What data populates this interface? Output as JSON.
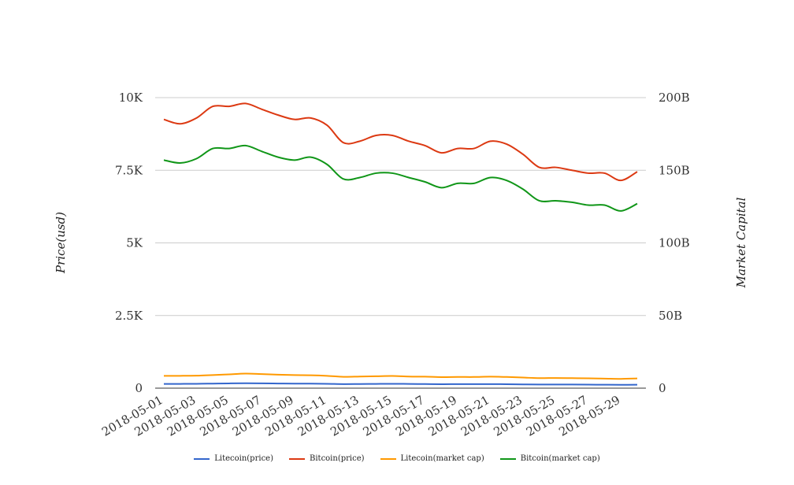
{
  "chart_data": {
    "type": "line",
    "x": [
      "2018-05-01",
      "2018-05-02",
      "2018-05-03",
      "2018-05-04",
      "2018-05-05",
      "2018-05-06",
      "2018-05-07",
      "2018-05-08",
      "2018-05-09",
      "2018-05-10",
      "2018-05-11",
      "2018-05-12",
      "2018-05-13",
      "2018-05-14",
      "2018-05-15",
      "2018-05-16",
      "2018-05-17",
      "2018-05-18",
      "2018-05-19",
      "2018-05-20",
      "2018-05-21",
      "2018-05-22",
      "2018-05-23",
      "2018-05-24",
      "2018-05-25",
      "2018-05-26",
      "2018-05-27",
      "2018-05-28",
      "2018-05-29",
      "2018-05-30"
    ],
    "x_tick_labels": [
      "2018-05-01",
      "2018-05-03",
      "2018-05-05",
      "2018-05-07",
      "2018-05-09",
      "2018-05-11",
      "2018-05-13",
      "2018-05-15",
      "2018-05-17",
      "2018-05-19",
      "2018-05-21",
      "2018-05-23",
      "2018-05-25",
      "2018-05-27",
      "2018-05-29"
    ],
    "ylabel": "Price(usd)",
    "y2label": "Market Capital",
    "ylim": [
      0,
      10000
    ],
    "y2lim": [
      0,
      200000000000
    ],
    "y_ticks": [
      "0",
      "2.5K",
      "5K",
      "7.5K",
      "10K"
    ],
    "y2_ticks": [
      "0",
      "50B",
      "100B",
      "150B",
      "200B"
    ],
    "grid": true,
    "legend_position": "bottom",
    "series": [
      {
        "name": "Litecoin(price)",
        "axis": "left",
        "color": "#3366cc",
        "values": [
          145,
          147,
          150,
          157,
          164,
          168,
          165,
          160,
          155,
          155,
          150,
          140,
          143,
          147,
          150,
          146,
          142,
          137,
          138,
          138,
          140,
          137,
          130,
          125,
          126,
          124,
          122,
          118,
          115,
          118
        ]
      },
      {
        "name": "Bitcoin(price)",
        "axis": "right",
        "color": "#dc3912",
        "values": [
          185000000000,
          182000000000,
          186000000000,
          194000000000,
          194000000000,
          196000000000,
          192000000000,
          188000000000,
          185000000000,
          186000000000,
          181000000000,
          169000000000,
          170000000000,
          174000000000,
          174000000000,
          170000000000,
          167000000000,
          162000000000,
          165000000000,
          165000000000,
          170000000000,
          168000000000,
          161000000000,
          152000000000,
          152000000000,
          150000000000,
          148000000000,
          148000000000,
          143000000000,
          149000000000
        ]
      },
      {
        "name": "Litecoin(market cap)",
        "axis": "right",
        "color": "#ff9900",
        "values": [
          8500000000,
          8500000000,
          8600000000,
          9000000000,
          9500000000,
          10000000000,
          9700000000,
          9300000000,
          9000000000,
          8900000000,
          8500000000,
          7800000000,
          8000000000,
          8200000000,
          8400000000,
          8000000000,
          7900000000,
          7600000000,
          7700000000,
          7700000000,
          7900000000,
          7700000000,
          7300000000,
          6900000000,
          7000000000,
          6900000000,
          6800000000,
          6600000000,
          6400000000,
          6700000000
        ]
      },
      {
        "name": "Bitcoin(market cap)",
        "axis": "right",
        "color": "#109618",
        "values": [
          157000000000,
          155000000000,
          158000000000,
          165000000000,
          165000000000,
          167000000000,
          163000000000,
          159000000000,
          157000000000,
          159000000000,
          154000000000,
          144000000000,
          145000000000,
          148000000000,
          148000000000,
          145000000000,
          142000000000,
          138000000000,
          141000000000,
          141000000000,
          145000000000,
          143000000000,
          137000000000,
          129000000000,
          129000000000,
          128000000000,
          126000000000,
          126000000000,
          122000000000,
          127000000000
        ]
      }
    ]
  }
}
